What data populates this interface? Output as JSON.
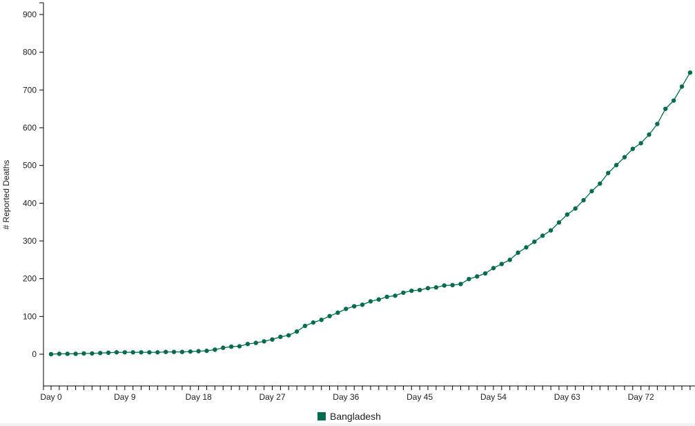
{
  "colors": {
    "series": "#046b4f",
    "axis": "#000000"
  },
  "chart_data": {
    "type": "line",
    "title": "",
    "xlabel": "",
    "ylabel": "# Reported Deaths",
    "ylim": [
      -85,
      935
    ],
    "xlim": [
      -1,
      79
    ],
    "grid": false,
    "legend_position": "bottom-center",
    "y_ticks": [
      0,
      100,
      200,
      300,
      400,
      500,
      600,
      700,
      800,
      900
    ],
    "x_tick_labels": [
      "Day 0",
      "Day 9",
      "Day 18",
      "Day 27",
      "Day 36",
      "Day 45",
      "Day 54",
      "Day 63",
      "Day 72"
    ],
    "x_tick_days": [
      0,
      9,
      18,
      27,
      36,
      45,
      54,
      63,
      72
    ],
    "series": [
      {
        "name": "Bangladesh",
        "color": "#046b4f",
        "x": [
          0,
          1,
          2,
          3,
          4,
          5,
          6,
          7,
          8,
          9,
          10,
          11,
          12,
          13,
          14,
          15,
          16,
          17,
          18,
          19,
          20,
          21,
          22,
          23,
          24,
          25,
          26,
          27,
          28,
          29,
          30,
          31,
          32,
          33,
          34,
          35,
          36,
          37,
          38,
          39,
          40,
          41,
          42,
          43,
          44,
          45,
          46,
          47,
          48,
          49,
          50,
          51,
          52,
          53,
          54,
          55,
          56,
          57,
          58,
          59,
          60,
          61,
          62,
          63,
          64,
          65,
          66,
          67,
          68,
          69,
          70,
          71,
          72,
          73,
          74,
          75,
          76,
          77,
          78
        ],
        "y": [
          0,
          1,
          1,
          1,
          2,
          2,
          3,
          4,
          5,
          5,
          5,
          5,
          5,
          5,
          6,
          6,
          6,
          7,
          8,
          9,
          12,
          17,
          20,
          21,
          27,
          30,
          34,
          39,
          46,
          50,
          60,
          75,
          84,
          91,
          101,
          110,
          120,
          127,
          131,
          140,
          145,
          152,
          155,
          163,
          168,
          170,
          175,
          177,
          182,
          183,
          186,
          199,
          206,
          214,
          228,
          239,
          250,
          269,
          283,
          298,
          314,
          328,
          349,
          370,
          386,
          408,
          432,
          452,
          480,
          501,
          522,
          544,
          559,
          582,
          610,
          650,
          672,
          709,
          746
        ]
      }
    ]
  }
}
